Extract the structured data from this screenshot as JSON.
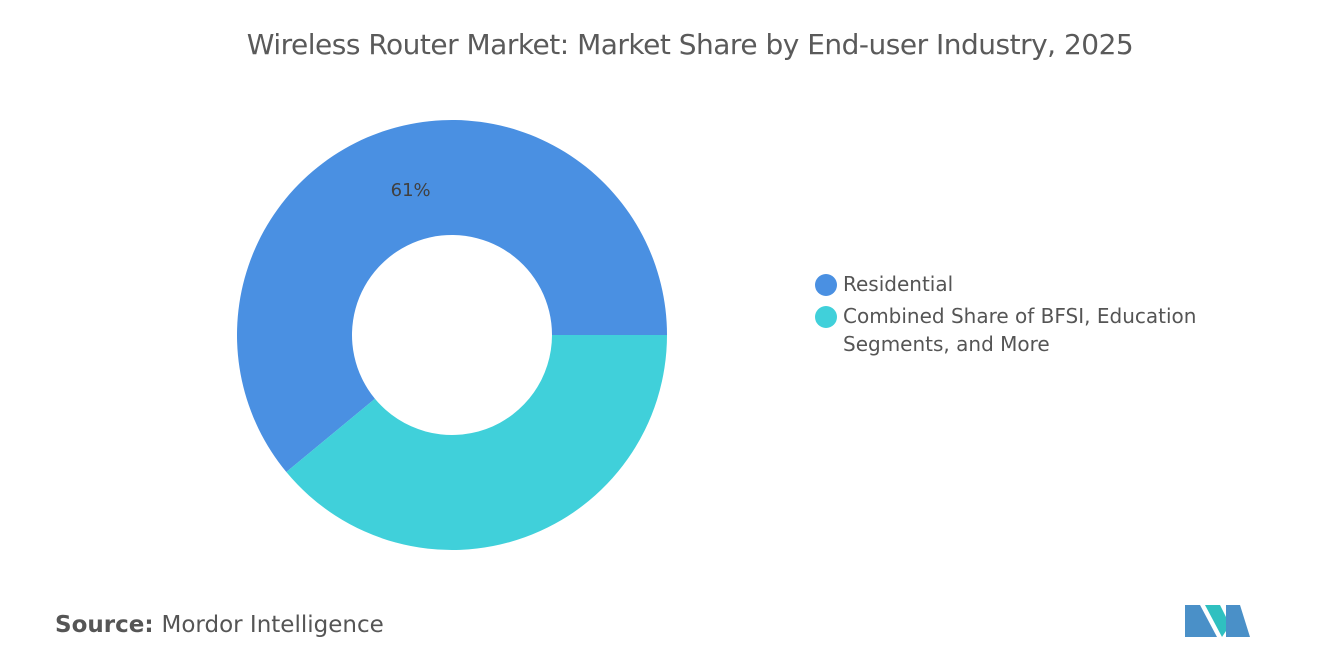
{
  "chart_data": {
    "type": "donut",
    "title": "Wireless Router Market: Market Share by End-user Industry, 2025",
    "categories": [
      "Residential",
      "Combined Share of BFSI, Education Segments, and More"
    ],
    "values": [
      61,
      39
    ],
    "value_labels": [
      "61%",
      null
    ],
    "colors": [
      "#4a90e2",
      "#40d0da"
    ]
  },
  "source_label": "Source:",
  "source": "Mordor Intelligence"
}
